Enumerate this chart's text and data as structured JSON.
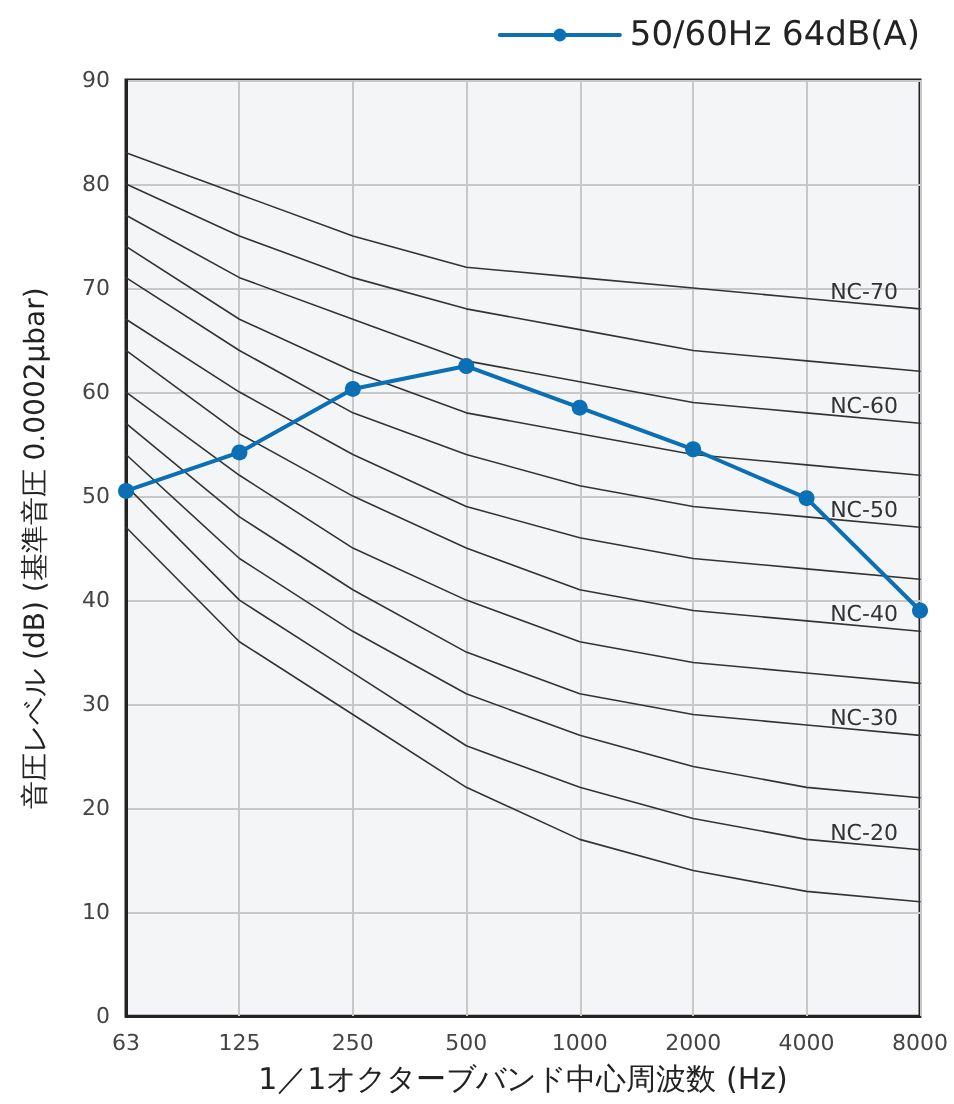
{
  "chart_data": {
    "type": "line",
    "xlabel": "1／1オクターブバンド中心周波数 (Hz)",
    "ylabel": "音圧レベル (dB) (基準音圧 0.0002μbar)",
    "categories": [
      "63",
      "125",
      "250",
      "500",
      "1000",
      "2000",
      "4000",
      "8000"
    ],
    "ylim": [
      0,
      90
    ],
    "yticks": [
      0,
      10,
      20,
      30,
      40,
      50,
      60,
      70,
      80,
      90
    ],
    "grid": true,
    "legend": "top right",
    "series": [
      {
        "name": "50/60Hz 64dB(A)",
        "color": "#0a6fb4",
        "marker": "circle",
        "values": [
          50.5,
          54.2,
          60.3,
          62.5,
          58.5,
          54.5,
          49.8,
          39
        ]
      },
      {
        "color": "#333333",
        "marker": "none",
        "values": [
          47,
          36,
          29,
          22,
          17,
          14,
          12,
          11
        ]
      },
      {
        "name": "NC-20",
        "color": "#333333",
        "marker": "none",
        "values": [
          51,
          40,
          33,
          26,
          22,
          19,
          17,
          16
        ]
      },
      {
        "color": "#333333",
        "marker": "none",
        "values": [
          54,
          44,
          37,
          31,
          27,
          24,
          22,
          21
        ]
      },
      {
        "name": "NC-30",
        "color": "#333333",
        "marker": "none",
        "values": [
          57,
          48,
          41,
          35,
          31,
          29,
          28,
          27
        ]
      },
      {
        "color": "#333333",
        "marker": "none",
        "values": [
          60,
          52,
          45,
          40,
          36,
          34,
          33,
          32
        ]
      },
      {
        "name": "NC-40",
        "color": "#333333",
        "marker": "none",
        "values": [
          64,
          56,
          50,
          45,
          41,
          39,
          38,
          37
        ]
      },
      {
        "color": "#333333",
        "marker": "none",
        "values": [
          67,
          60,
          54,
          49,
          46,
          44,
          43,
          42
        ]
      },
      {
        "name": "NC-50",
        "color": "#333333",
        "marker": "none",
        "values": [
          71,
          64,
          58,
          54,
          51,
          49,
          48,
          47
        ]
      },
      {
        "color": "#333333",
        "marker": "none",
        "values": [
          74,
          67,
          62,
          58,
          56,
          54,
          53,
          52
        ]
      },
      {
        "name": "NC-60",
        "color": "#333333",
        "marker": "none",
        "values": [
          77,
          71,
          67,
          63,
          61,
          59,
          58,
          57
        ]
      },
      {
        "color": "#333333",
        "marker": "none",
        "values": [
          80,
          75,
          71,
          68,
          66,
          64,
          63,
          62
        ]
      },
      {
        "name": "NC-70",
        "color": "#333333",
        "marker": "none",
        "values": [
          83,
          79,
          75,
          72,
          71,
          70,
          69,
          68
        ]
      }
    ]
  }
}
